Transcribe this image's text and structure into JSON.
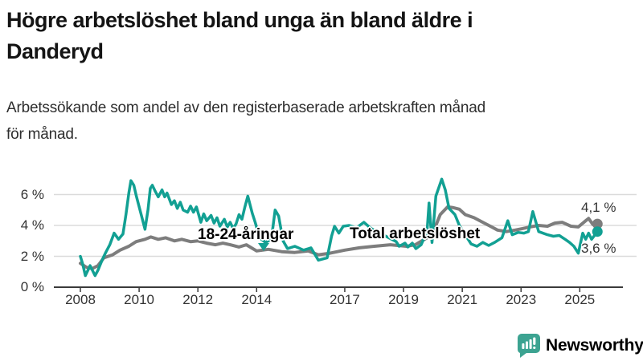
{
  "header": {
    "title_lines": [
      "Högre arbetslöshet bland unga än bland äldre i",
      "Danderyd"
    ],
    "subtitle_lines": [
      "Arbetssökande som andel av den registerbaserade arbetskraften månad",
      "för månad."
    ]
  },
  "colors": {
    "accent_teal": "#12A093",
    "total_gray": "#7D7D7D",
    "grid": "#DBDBDB",
    "axis": "#3A3A3A",
    "text": "#333333",
    "brand_teal": "#3CA391"
  },
  "footer": {
    "brand": "Newsworthy"
  },
  "chart_data": {
    "type": "line",
    "title": "Högre arbetslöshet bland unga än bland äldre i Danderyd",
    "subtitle": "Arbetssökande som andel av den registerbaserade arbetskraften månad för månad.",
    "xlabel": "",
    "ylabel": "",
    "unit": "%",
    "grid": "horizontal",
    "legend_position": "inline-labels",
    "ylim": [
      0,
      7.3
    ],
    "xlim": [
      2007.2,
      2026.8
    ],
    "y_ticks": [
      0,
      2,
      4,
      6
    ],
    "y_tick_labels": [
      "0 %",
      "2 %",
      "4 %",
      "6 %"
    ],
    "x_ticks": [
      2008,
      2010,
      2012,
      2014,
      2017,
      2019,
      2021,
      2023,
      2025
    ],
    "x_tick_labels": [
      "2008",
      "2010",
      "2012",
      "2014",
      "2017",
      "2019",
      "2021",
      "2023",
      "2025"
    ],
    "series": [
      {
        "name": "18-24-åringar",
        "color": "#12A093",
        "end_label": "3,6 %",
        "end_value": 3.6,
        "points": [
          [
            2008.0,
            2.0
          ],
          [
            2008.08,
            1.5
          ],
          [
            2008.17,
            0.75
          ],
          [
            2008.33,
            1.4
          ],
          [
            2008.5,
            0.75
          ],
          [
            2008.6,
            1.1
          ],
          [
            2008.75,
            1.8
          ],
          [
            2008.85,
            2.2
          ],
          [
            2009.0,
            2.75
          ],
          [
            2009.15,
            3.5
          ],
          [
            2009.3,
            3.1
          ],
          [
            2009.45,
            3.45
          ],
          [
            2009.55,
            4.7
          ],
          [
            2009.65,
            6.1
          ],
          [
            2009.72,
            6.9
          ],
          [
            2009.82,
            6.6
          ],
          [
            2009.9,
            5.95
          ],
          [
            2010.05,
            4.85
          ],
          [
            2010.2,
            3.75
          ],
          [
            2010.3,
            5.0
          ],
          [
            2010.38,
            6.4
          ],
          [
            2010.45,
            6.6
          ],
          [
            2010.55,
            6.2
          ],
          [
            2010.65,
            5.85
          ],
          [
            2010.78,
            6.3
          ],
          [
            2010.87,
            5.85
          ],
          [
            2010.95,
            6.1
          ],
          [
            2011.1,
            5.35
          ],
          [
            2011.2,
            5.6
          ],
          [
            2011.3,
            5.1
          ],
          [
            2011.4,
            5.5
          ],
          [
            2011.5,
            5.0
          ],
          [
            2011.65,
            4.85
          ],
          [
            2011.75,
            5.25
          ],
          [
            2011.85,
            4.85
          ],
          [
            2011.95,
            5.2
          ],
          [
            2012.1,
            4.2
          ],
          [
            2012.2,
            4.75
          ],
          [
            2012.3,
            4.3
          ],
          [
            2012.45,
            4.65
          ],
          [
            2012.55,
            4.15
          ],
          [
            2012.65,
            4.5
          ],
          [
            2012.75,
            3.95
          ],
          [
            2012.9,
            4.4
          ],
          [
            2013.0,
            3.9
          ],
          [
            2013.1,
            4.2
          ],
          [
            2013.2,
            3.8
          ],
          [
            2013.3,
            4.1
          ],
          [
            2013.4,
            4.7
          ],
          [
            2013.5,
            4.4
          ],
          [
            2013.6,
            5.2
          ],
          [
            2013.7,
            5.9
          ],
          [
            2013.85,
            4.8
          ],
          [
            2013.95,
            4.2
          ],
          [
            2014.1,
            3.2
          ],
          [
            2014.3,
            2.9
          ],
          [
            2014.5,
            3.1
          ],
          [
            2014.63,
            5.0
          ],
          [
            2014.75,
            4.6
          ],
          [
            2014.9,
            3.0
          ],
          [
            2015.05,
            2.5
          ],
          [
            2015.3,
            2.65
          ],
          [
            2015.6,
            2.4
          ],
          [
            2015.85,
            2.55
          ],
          [
            2016.1,
            1.75
          ],
          [
            2016.4,
            1.9
          ],
          [
            2016.55,
            3.3
          ],
          [
            2016.65,
            3.95
          ],
          [
            2016.8,
            3.5
          ],
          [
            2016.95,
            3.95
          ],
          [
            2017.15,
            4.0
          ],
          [
            2017.4,
            3.85
          ],
          [
            2017.65,
            4.2
          ],
          [
            2017.9,
            3.8
          ],
          [
            2018.2,
            3.5
          ],
          [
            2018.5,
            3.2
          ],
          [
            2018.75,
            2.95
          ],
          [
            2018.85,
            2.65
          ],
          [
            2019.05,
            2.85
          ],
          [
            2019.15,
            2.6
          ],
          [
            2019.3,
            2.85
          ],
          [
            2019.42,
            2.5
          ],
          [
            2019.6,
            2.75
          ],
          [
            2019.8,
            3.6
          ],
          [
            2019.87,
            5.45
          ],
          [
            2019.97,
            2.9
          ],
          [
            2020.1,
            5.9
          ],
          [
            2020.3,
            7.0
          ],
          [
            2020.42,
            6.3
          ],
          [
            2020.55,
            5.1
          ],
          [
            2020.75,
            4.7
          ],
          [
            2020.9,
            4.0
          ],
          [
            2021.1,
            3.4
          ],
          [
            2021.3,
            2.8
          ],
          [
            2021.5,
            2.65
          ],
          [
            2021.7,
            2.9
          ],
          [
            2021.9,
            2.7
          ],
          [
            2022.1,
            2.9
          ],
          [
            2022.35,
            3.2
          ],
          [
            2022.55,
            4.3
          ],
          [
            2022.7,
            3.4
          ],
          [
            2022.9,
            3.55
          ],
          [
            2023.1,
            3.5
          ],
          [
            2023.25,
            3.6
          ],
          [
            2023.4,
            4.9
          ],
          [
            2023.6,
            3.6
          ],
          [
            2023.9,
            3.4
          ],
          [
            2024.1,
            3.3
          ],
          [
            2024.3,
            3.35
          ],
          [
            2024.5,
            3.1
          ],
          [
            2024.65,
            2.9
          ],
          [
            2024.8,
            2.65
          ],
          [
            2024.95,
            2.2
          ],
          [
            2025.1,
            3.5
          ],
          [
            2025.2,
            3.1
          ],
          [
            2025.3,
            3.5
          ],
          [
            2025.4,
            3.1
          ],
          [
            2025.6,
            3.6
          ]
        ]
      },
      {
        "name": "Total arbetslöshet",
        "color": "#7D7D7D",
        "end_label": "4,1 %",
        "end_value": 4.1,
        "points": [
          [
            2008.0,
            1.55
          ],
          [
            2008.2,
            1.3
          ],
          [
            2008.4,
            1.2
          ],
          [
            2008.6,
            1.4
          ],
          [
            2008.8,
            1.9
          ],
          [
            2009.1,
            2.1
          ],
          [
            2009.35,
            2.4
          ],
          [
            2009.65,
            2.65
          ],
          [
            2009.9,
            2.95
          ],
          [
            2010.2,
            3.1
          ],
          [
            2010.4,
            3.25
          ],
          [
            2010.65,
            3.1
          ],
          [
            2010.9,
            3.2
          ],
          [
            2011.2,
            3.0
          ],
          [
            2011.45,
            3.1
          ],
          [
            2011.75,
            2.95
          ],
          [
            2012.0,
            3.0
          ],
          [
            2012.3,
            2.85
          ],
          [
            2012.6,
            2.75
          ],
          [
            2012.85,
            2.85
          ],
          [
            2013.1,
            2.75
          ],
          [
            2013.4,
            2.6
          ],
          [
            2013.65,
            2.75
          ],
          [
            2014.0,
            2.35
          ],
          [
            2014.4,
            2.45
          ],
          [
            2014.85,
            2.3
          ],
          [
            2015.3,
            2.25
          ],
          [
            2015.75,
            2.35
          ],
          [
            2016.1,
            2.1
          ],
          [
            2016.5,
            2.2
          ],
          [
            2017.0,
            2.4
          ],
          [
            2017.5,
            2.55
          ],
          [
            2018.0,
            2.65
          ],
          [
            2018.55,
            2.75
          ],
          [
            2019.1,
            2.65
          ],
          [
            2019.4,
            2.75
          ],
          [
            2019.8,
            3.2
          ],
          [
            2020.1,
            4.0
          ],
          [
            2020.25,
            4.7
          ],
          [
            2020.5,
            5.2
          ],
          [
            2020.7,
            5.15
          ],
          [
            2020.9,
            5.05
          ],
          [
            2021.1,
            4.7
          ],
          [
            2021.4,
            4.5
          ],
          [
            2021.7,
            4.2
          ],
          [
            2022.0,
            3.9
          ],
          [
            2022.2,
            3.7
          ],
          [
            2022.5,
            3.6
          ],
          [
            2022.8,
            3.7
          ],
          [
            2023.05,
            3.8
          ],
          [
            2023.3,
            3.9
          ],
          [
            2023.6,
            4.0
          ],
          [
            2023.9,
            3.95
          ],
          [
            2024.15,
            4.15
          ],
          [
            2024.4,
            4.2
          ],
          [
            2024.7,
            3.95
          ],
          [
            2024.95,
            3.9
          ],
          [
            2025.2,
            4.3
          ],
          [
            2025.3,
            4.45
          ],
          [
            2025.45,
            4.05
          ],
          [
            2025.6,
            4.1
          ]
        ]
      }
    ]
  }
}
